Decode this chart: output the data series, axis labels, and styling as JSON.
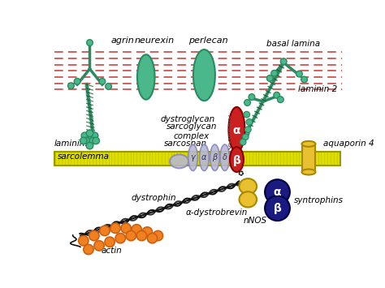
{
  "bg_color": "#ffffff",
  "basal_lamina_color": "#cc3333",
  "membrane_color": "#dddd00",
  "membrane_stripe": "#999900",
  "green_dark": "#2a8a60",
  "green_teal": "#4ab88a",
  "red_protein": "#cc2020",
  "blue_dark": "#1a1a80",
  "yellow_protein": "#e8c030",
  "gray_protein": "#b8b8d8",
  "orange_actin": "#f08020",
  "black": "#111111",
  "labels": {
    "agrin": "agrin",
    "neurexin": "neurexin",
    "perlecan": "perlecan",
    "basal_lamina": "basal lamina",
    "laminins": "laminins",
    "dystroglycan": "dystroglycan",
    "laminin2": "laminin 2",
    "sarcoglycan": "sarcoglycan\ncomplex",
    "sarcospan": "sarcospan",
    "sarcolemma": "sarcolemma",
    "aquaporin": "aquaporin 4",
    "dystrophin": "dystrophin",
    "alpha_dystrobrevin": "α-dystrobrevin",
    "nNOS": "nNOS",
    "syntrophins": "syntrophins",
    "actin": "actin"
  },
  "greek": {
    "alpha": "α",
    "beta": "β",
    "gamma": "γ",
    "delta": "δ"
  }
}
